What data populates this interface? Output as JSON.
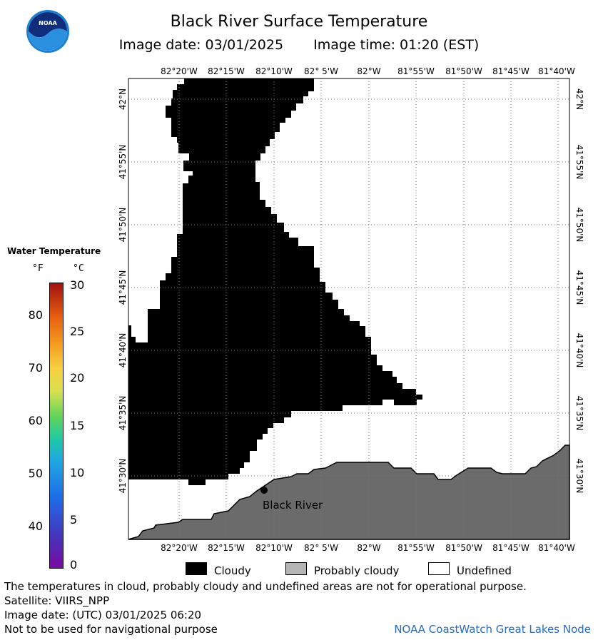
{
  "header": {
    "title": "Black River Surface Temperature",
    "image_date": "Image date: 03/01/2025",
    "image_time": "Image time: 01:20 (EST)"
  },
  "logo": {
    "text": "NOAA",
    "icon": "noaa-logo-icon"
  },
  "map": {
    "lon_labels": [
      "82°20'W",
      "82°15'W",
      "82°10'W",
      "82° 5'W",
      "82°W",
      "81°55'W",
      "81°50'W",
      "81°45'W",
      "81°40'W"
    ],
    "lat_labels": [
      "42°N",
      "41°55'N",
      "41°50'N",
      "41°45'N",
      "41°40'N",
      "41°35'N",
      "41°30'N"
    ],
    "location_label": "Black River",
    "colors": {
      "cloudy": "#000000",
      "land": "#6b6b6b",
      "water": "#ffffff",
      "grid": "#777777"
    }
  },
  "legend": {
    "title": "Water Temperature",
    "unit_f": "°F",
    "unit_c": "°C",
    "f_ticks": [
      "80",
      "70",
      "60",
      "50",
      "40"
    ],
    "c_ticks": [
      "30",
      "25",
      "20",
      "15",
      "10",
      "5",
      "0"
    ]
  },
  "key": {
    "cloudy": "Cloudy",
    "probably_cloudy": "Probably cloudy",
    "undefined": "Undefined"
  },
  "footer": {
    "note": "The temperatures in cloud, probably cloudy and undefined areas are not for operational purpose.",
    "satellite": "Satellite: VIIRS_NPP",
    "utc_date": "Image date: (UTC) 03/01/2025  06:20",
    "warning": "Not to be used for navigational purpose",
    "credit": "NOAA CoastWatch Great Lakes Node"
  }
}
